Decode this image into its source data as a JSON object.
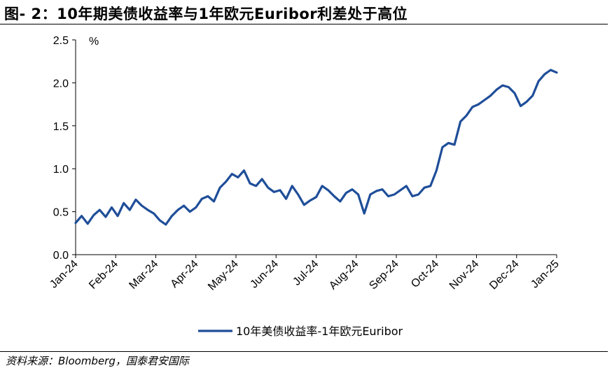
{
  "title": "图- 2：10年期美债收益率与1年欧元Euribor利差处于高位",
  "source": "资料来源：Bloomberg，国泰君安国际",
  "chart_data": {
    "type": "line",
    "ylabel": "%",
    "ylim": [
      0.0,
      2.5
    ],
    "yticks": [
      "0.0",
      "0.5",
      "1.0",
      "1.5",
      "2.0",
      "2.5"
    ],
    "x_tick_labels": [
      "Jan-24",
      "Feb-24",
      "Mar-24",
      "Apr-24",
      "May-24",
      "Jun-24",
      "Jul-24",
      "Aug-24",
      "Sep-24",
      "Oct-24",
      "Nov-24",
      "Dec-24",
      "Jan-25"
    ],
    "grid": false,
    "legend_position": "bottom",
    "series": [
      {
        "name": "10年美债收益率-1年欧元Euribor",
        "color": "#1f4e99",
        "x": [
          0.0,
          0.15,
          0.3,
          0.45,
          0.6,
          0.75,
          0.9,
          1.05,
          1.2,
          1.35,
          1.5,
          1.65,
          1.8,
          1.95,
          2.1,
          2.25,
          2.4,
          2.55,
          2.7,
          2.85,
          3.0,
          3.15,
          3.3,
          3.45,
          3.6,
          3.75,
          3.9,
          4.05,
          4.2,
          4.35,
          4.5,
          4.65,
          4.8,
          4.95,
          5.1,
          5.25,
          5.4,
          5.55,
          5.7,
          5.85,
          6.0,
          6.15,
          6.3,
          6.45,
          6.6,
          6.75,
          6.9,
          7.05,
          7.2,
          7.35,
          7.5,
          7.65,
          7.8,
          7.95,
          8.1,
          8.25,
          8.4,
          8.55,
          8.7,
          8.85,
          9.0,
          9.15,
          9.3,
          9.45,
          9.6,
          9.75,
          9.9,
          10.05,
          10.2,
          10.35,
          10.5,
          10.65,
          10.8,
          10.95,
          11.1,
          11.25,
          11.4,
          11.55,
          11.7,
          11.85,
          12.0
        ],
        "values": [
          0.37,
          0.45,
          0.36,
          0.46,
          0.52,
          0.44,
          0.55,
          0.45,
          0.6,
          0.52,
          0.64,
          0.57,
          0.52,
          0.48,
          0.4,
          0.35,
          0.45,
          0.52,
          0.57,
          0.5,
          0.55,
          0.65,
          0.68,
          0.62,
          0.78,
          0.85,
          0.94,
          0.9,
          0.98,
          0.83,
          0.8,
          0.88,
          0.78,
          0.73,
          0.75,
          0.65,
          0.8,
          0.7,
          0.58,
          0.63,
          0.67,
          0.8,
          0.75,
          0.68,
          0.62,
          0.72,
          0.76,
          0.7,
          0.48,
          0.7,
          0.74,
          0.76,
          0.68,
          0.7,
          0.75,
          0.8,
          0.68,
          0.7,
          0.78,
          0.8,
          0.98,
          1.25,
          1.3,
          1.28,
          1.55,
          1.62,
          1.72,
          1.75,
          1.8,
          1.85,
          1.92,
          1.97,
          1.95,
          1.88,
          1.73,
          1.78,
          1.85,
          2.02,
          2.1,
          2.15,
          2.12
        ]
      }
    ]
  }
}
